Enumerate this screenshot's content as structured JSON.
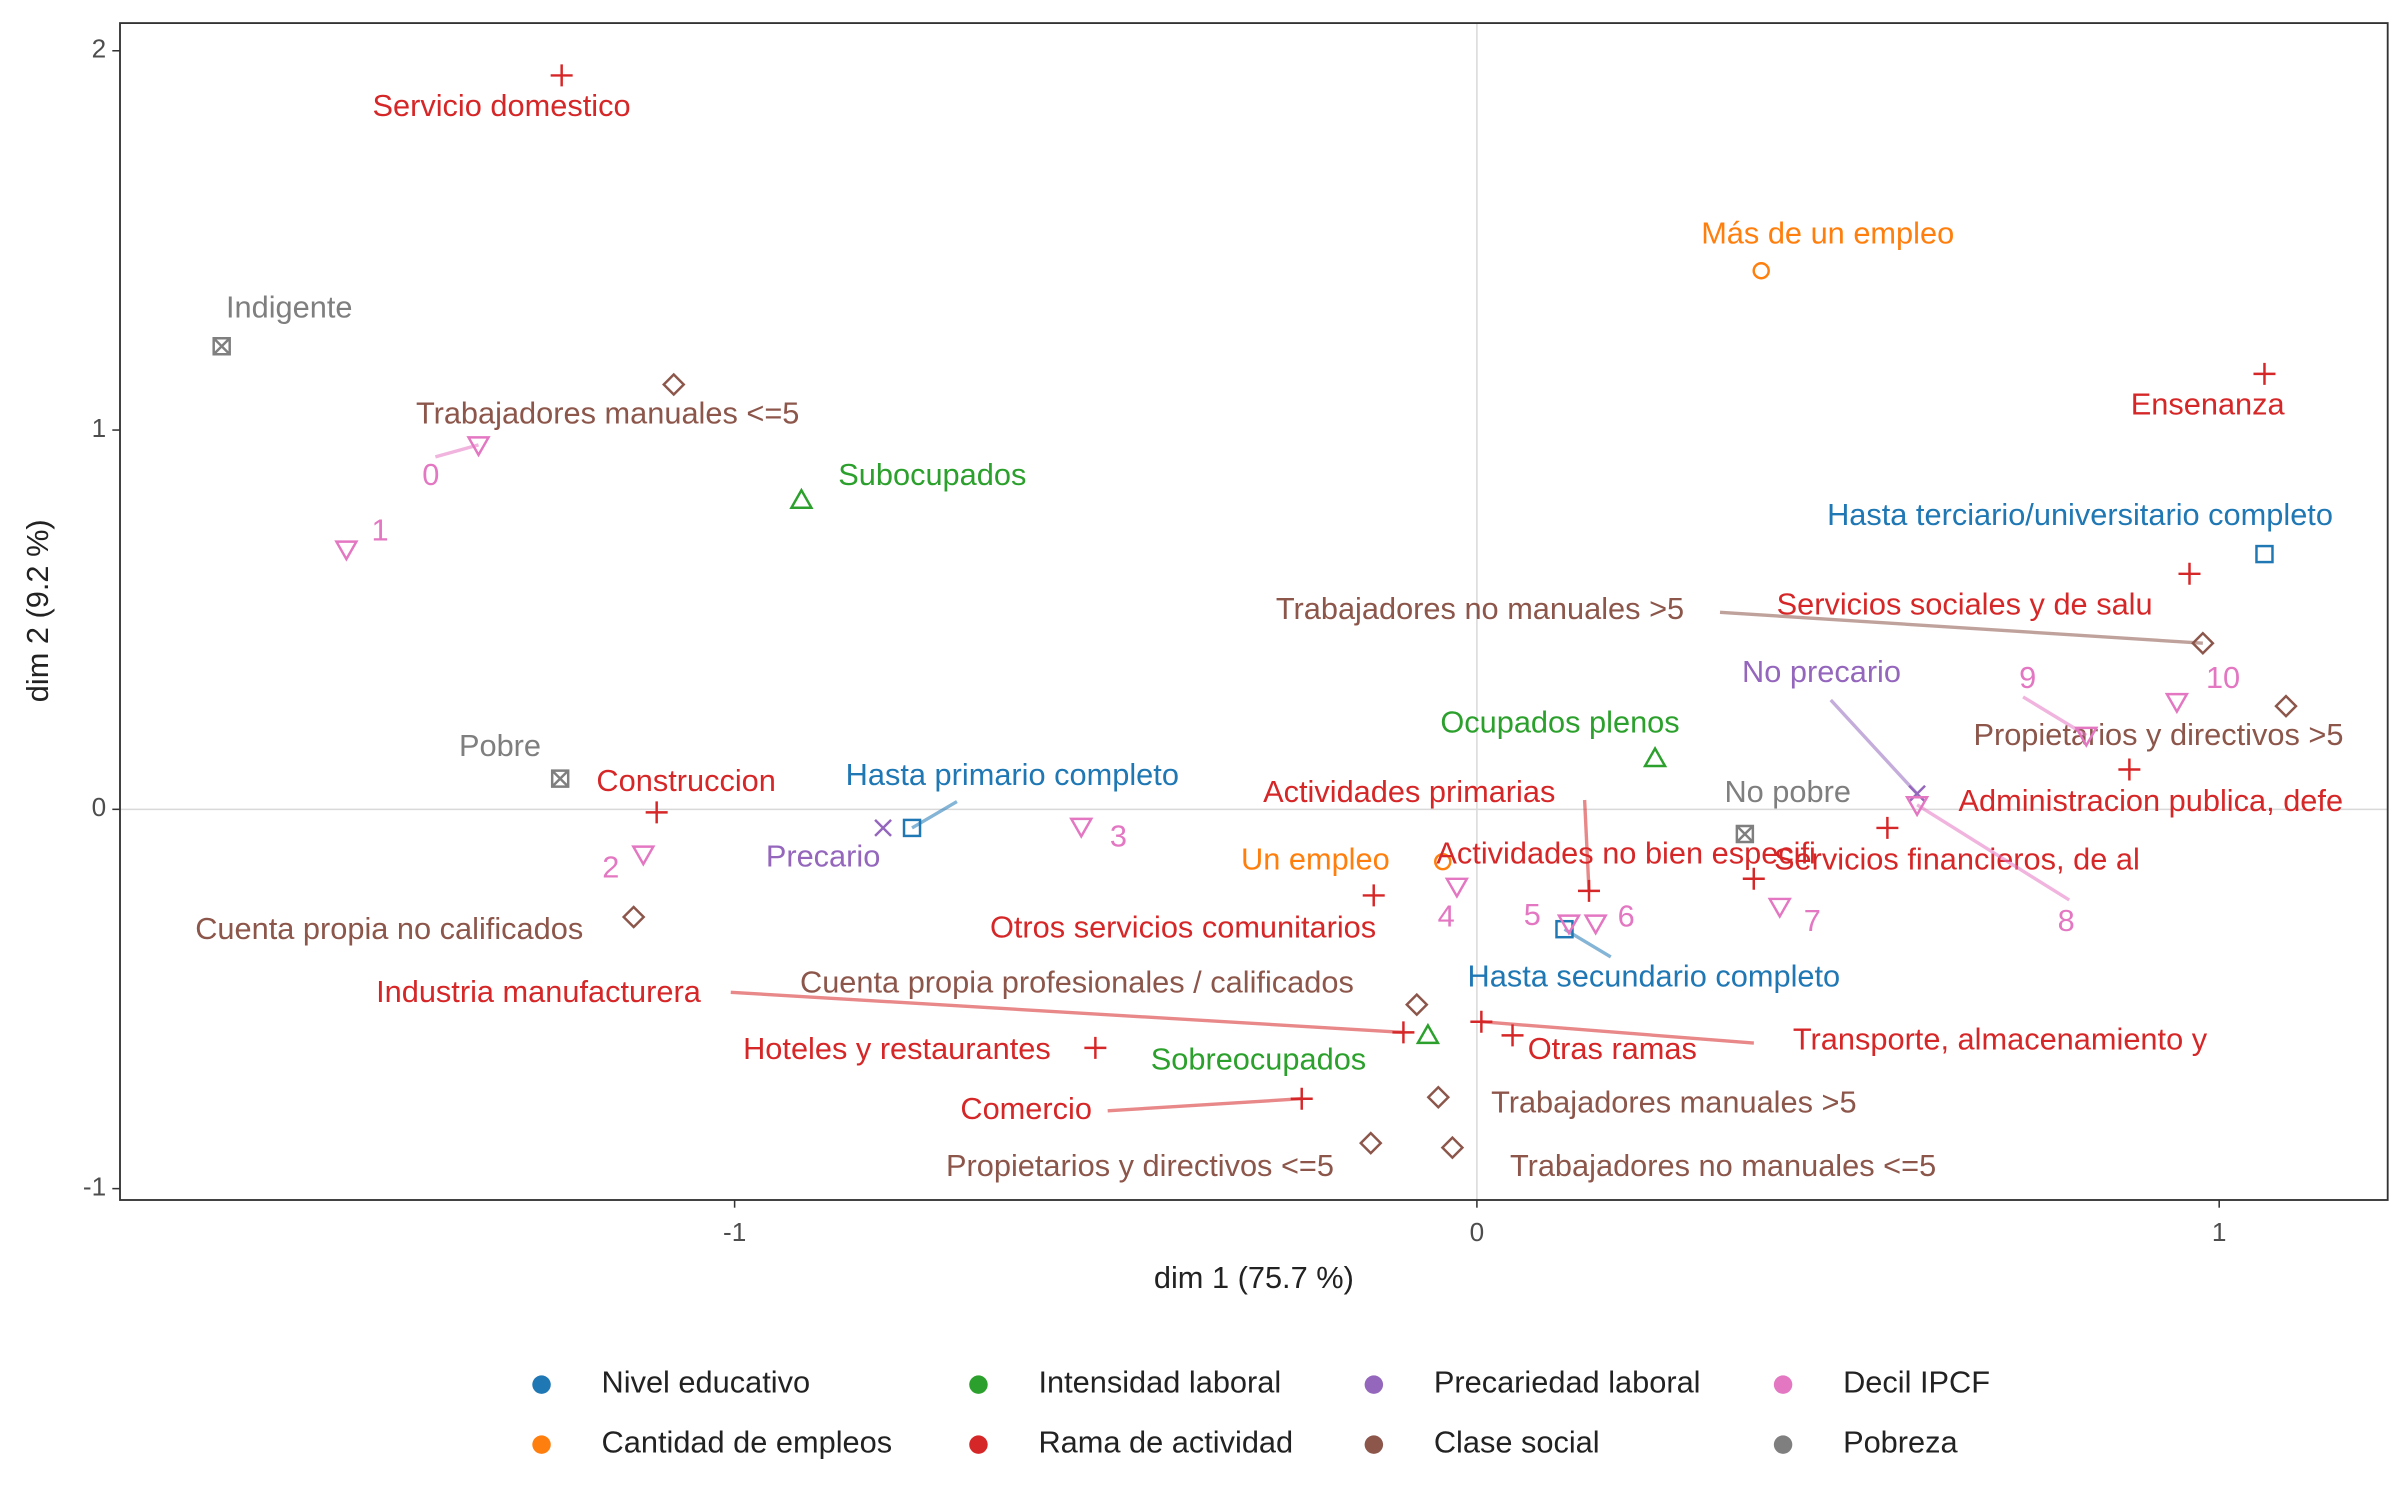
{
  "chart_data": {
    "type": "scatter",
    "x_label": "dim 1 (75.7 %)",
    "y_label": "dim 2 (9.2 %)",
    "xlim": [
      -1.828,
      1.227
    ],
    "ylim": [
      -1.03,
      2.073
    ],
    "xticks": [
      -1,
      0,
      1
    ],
    "yticks": [
      -1,
      0,
      1,
      2
    ],
    "zero_lines": true,
    "legend": "bottom",
    "series": [
      {
        "name": "Nivel educativo",
        "color": "#1f77b4",
        "marker": "square",
        "points": [
          {
            "label": "Hasta primario completo",
            "x": -0.761,
            "y": -0.049
          },
          {
            "label": "Hasta secundario completo",
            "x": 0.118,
            "y": -0.316
          },
          {
            "label": "Hasta terciario/universitario completo",
            "x": 1.061,
            "y": 0.673
          }
        ]
      },
      {
        "name": "Cantidad de empleos",
        "color": "#ff7f0e",
        "marker": "circle",
        "points": [
          {
            "label": "Más de un empleo",
            "x": 0.383,
            "y": 1.42
          },
          {
            "label": "Un empleo",
            "x": -0.046,
            "y": -0.138
          }
        ]
      },
      {
        "name": "Intensidad laboral",
        "color": "#2ca02c",
        "marker": "triangle",
        "points": [
          {
            "label": "Subocupados",
            "x": -0.91,
            "y": 0.815
          },
          {
            "label": "Ocupados plenos",
            "x": 0.24,
            "y": 0.134
          },
          {
            "label": "Sobreocupados",
            "x": -0.066,
            "y": -0.596
          }
        ]
      },
      {
        "name": "Rama de actividad",
        "color": "#d62728",
        "marker": "plus",
        "points": [
          {
            "label": "Servicio domestico",
            "x": -1.233,
            "y": 1.935
          },
          {
            "label": "Ensenanza",
            "x": 1.061,
            "y": 1.148
          },
          {
            "label": "Servicios sociales y de salu",
            "x": 0.96,
            "y": 0.621
          },
          {
            "label": "Construccion",
            "x": -1.105,
            "y": -0.008
          },
          {
            "label": "Administracion publica, defe",
            "x": 0.879,
            "y": 0.105
          },
          {
            "label": "Servicios financieros, de al",
            "x": 0.553,
            "y": -0.049
          },
          {
            "label": "Actividades primarias",
            "x": 0.151,
            "y": -0.215
          },
          {
            "label": "Actividades no bien especifi",
            "x": 0.373,
            "y": -0.183
          },
          {
            "label": "Otros servicios comunitarios",
            "x": -0.139,
            "y": -0.227
          },
          {
            "label": "Industria manufacturera",
            "x": -0.099,
            "y": -0.588
          },
          {
            "label": "Hoteles y restaurantes",
            "x": -0.514,
            "y": -0.629
          },
          {
            "label": "Comercio",
            "x": -0.236,
            "y": -0.763
          },
          {
            "label": "Transporte, almacenamiento y",
            "x": 0.006,
            "y": -0.56
          },
          {
            "label": "Otras ramas",
            "x": 0.048,
            "y": -0.596
          }
        ]
      },
      {
        "name": "Precariedad laboral",
        "color": "#9467bd",
        "marker": "cross",
        "points": [
          {
            "label": "Precario",
            "x": -0.8,
            "y": -0.049
          },
          {
            "label": "No precario",
            "x": 0.593,
            "y": 0.041
          }
        ]
      },
      {
        "name": "Clase social",
        "color": "#8c564b",
        "marker": "diamond",
        "points": [
          {
            "label": "Trabajadores manuales <=5",
            "x": -1.082,
            "y": 1.12
          },
          {
            "label": "Trabajadores no manuales >5",
            "x": 0.978,
            "y": 0.438
          },
          {
            "label": "Propietarios y directivos >5",
            "x": 1.09,
            "y": 0.272
          },
          {
            "label": "Cuenta propia no calificados",
            "x": -1.136,
            "y": -0.284
          },
          {
            "label": "Cuenta propia profesionales / calificados",
            "x": -0.081,
            "y": -0.515
          },
          {
            "label": "Trabajadores manuales >5",
            "x": -0.052,
            "y": -0.759
          },
          {
            "label": "Propietarios y directivos <=5",
            "x": -0.143,
            "y": -0.88
          },
          {
            "label": "Trabajadores no manuales <=5",
            "x": -0.033,
            "y": -0.892
          }
        ]
      },
      {
        "name": "Decil IPCF",
        "color": "#e377c2",
        "marker": "down-triangle",
        "points": [
          {
            "label": "0",
            "x": -1.345,
            "y": 0.961
          },
          {
            "label": "1",
            "x": -1.523,
            "y": 0.686
          },
          {
            "label": "2",
            "x": -1.123,
            "y": -0.118
          },
          {
            "label": "3",
            "x": -0.533,
            "y": -0.045
          },
          {
            "label": "4",
            "x": -0.027,
            "y": -0.203
          },
          {
            "label": "5",
            "x": 0.124,
            "y": -0.3
          },
          {
            "label": "6",
            "x": 0.16,
            "y": -0.3
          },
          {
            "label": "7",
            "x": 0.408,
            "y": -0.256
          },
          {
            "label": "8",
            "x": 0.593,
            "y": 0.012
          },
          {
            "label": "9",
            "x": 0.821,
            "y": 0.195
          },
          {
            "label": "10",
            "x": 0.943,
            "y": 0.284
          }
        ]
      },
      {
        "name": "Pobreza",
        "color": "#7f7f7f",
        "marker": "square-cross",
        "points": [
          {
            "label": "Indigente",
            "x": -1.691,
            "y": 1.221
          },
          {
            "label": "Pobre",
            "x": -1.235,
            "y": 0.081
          },
          {
            "label": "No pobre",
            "x": 0.361,
            "y": -0.065
          }
        ]
      }
    ]
  }
}
